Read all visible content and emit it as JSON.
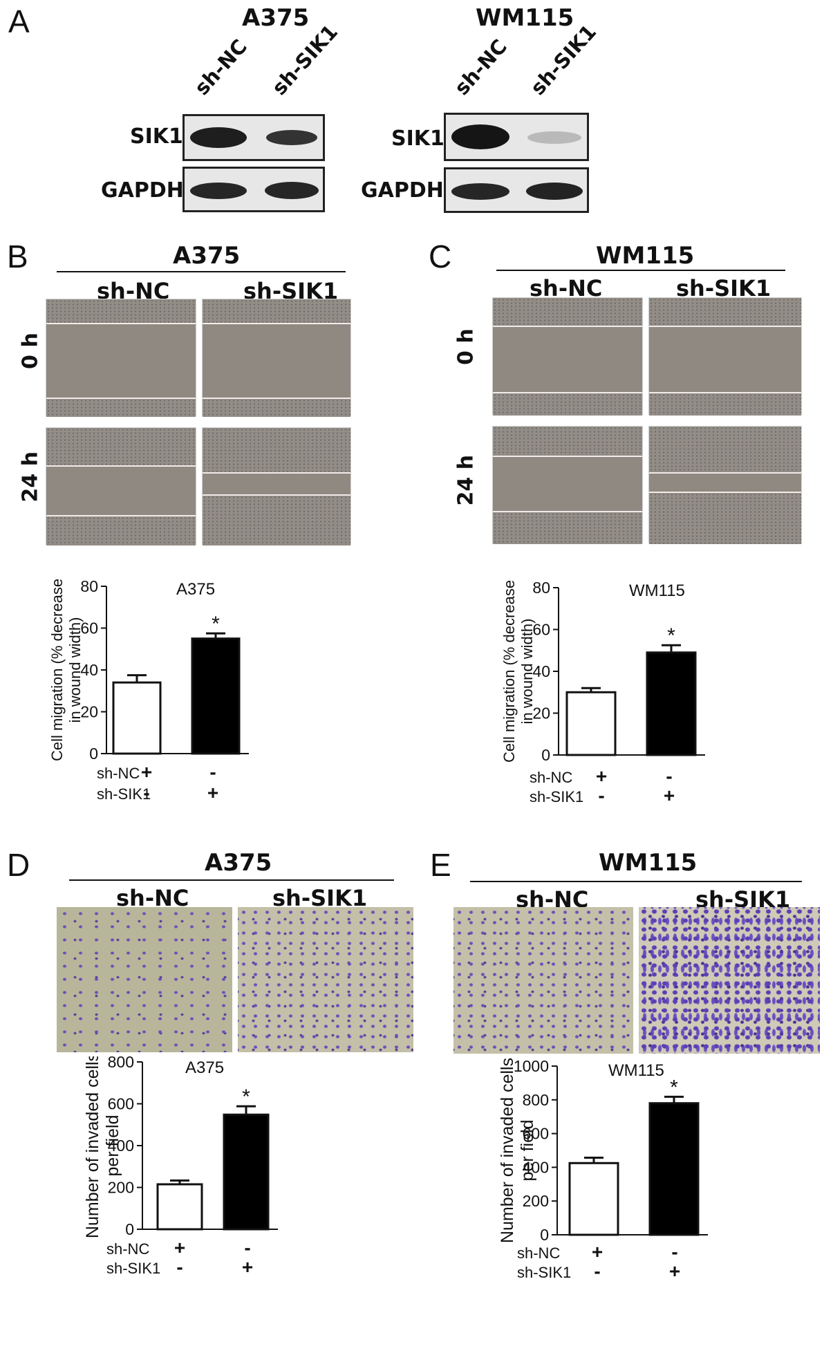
{
  "panels": {
    "A": {
      "label": "A",
      "blots": [
        {
          "cell_line": "A375",
          "lanes": [
            "sh-NC",
            "sh-SIK1"
          ],
          "rows": [
            "SIK1",
            "GAPDH"
          ]
        },
        {
          "cell_line": "WM115",
          "lanes": [
            "sh-NC",
            "sh-SIK1"
          ],
          "rows": [
            "SIK1",
            "GAPDH"
          ]
        }
      ]
    },
    "B": {
      "label": "B",
      "cell_line": "A375",
      "groups": [
        "sh-NC",
        "sh-SIK1"
      ],
      "times": [
        "0 h",
        "24 h"
      ]
    },
    "C": {
      "label": "C",
      "cell_line": "WM115",
      "groups": [
        "sh-NC",
        "sh-SIK1"
      ],
      "times": [
        "0 h",
        "24 h"
      ]
    },
    "D": {
      "label": "D",
      "cell_line": "A375",
      "groups": [
        "sh-NC",
        "sh-SIK1"
      ]
    },
    "E": {
      "label": "E",
      "cell_line": "WM115",
      "groups": [
        "sh-NC",
        "sh-SIK1"
      ]
    }
  },
  "chart_data": [
    {
      "panel": "B",
      "type": "bar",
      "title": "A375",
      "ylabel": "Cell migration (% decrease in wound width)",
      "ylim": [
        0,
        80
      ],
      "yticks": [
        0,
        20,
        40,
        60,
        80
      ],
      "categories": [
        "sh-NC +/sh-SIK1 -",
        "sh-NC -/sh-SIK1 +"
      ],
      "values": [
        34,
        55
      ],
      "errors": [
        3.5,
        2.5
      ],
      "fills": [
        "#ffffff",
        "#000000"
      ],
      "significance": [
        "",
        "*"
      ],
      "condition_rows": [
        {
          "name": "sh-NC",
          "signs": [
            "+",
            "-"
          ]
        },
        {
          "name": "sh-SIK1",
          "signs": [
            "-",
            "+"
          ]
        }
      ]
    },
    {
      "panel": "C",
      "type": "bar",
      "title": "WM115",
      "ylabel": "Cell migration (% decrease in wound width)",
      "ylim": [
        0,
        80
      ],
      "yticks": [
        0,
        20,
        40,
        60,
        80
      ],
      "categories": [
        "sh-NC +/sh-SIK1 -",
        "sh-NC -/sh-SIK1 +"
      ],
      "values": [
        30,
        49
      ],
      "errors": [
        2,
        3.5
      ],
      "fills": [
        "#ffffff",
        "#000000"
      ],
      "significance": [
        "",
        "*"
      ],
      "condition_rows": [
        {
          "name": "sh-NC",
          "signs": [
            "+",
            "-"
          ]
        },
        {
          "name": "sh-SIK1",
          "signs": [
            "-",
            "+"
          ]
        }
      ]
    },
    {
      "panel": "D",
      "type": "bar",
      "title": "A375",
      "ylabel": "Number of invaded cells per field",
      "ylim": [
        0,
        800
      ],
      "yticks": [
        0,
        200,
        400,
        600,
        800
      ],
      "categories": [
        "sh-NC +/sh-SIK1 -",
        "sh-NC -/sh-SIK1 +"
      ],
      "values": [
        215,
        548
      ],
      "errors": [
        18,
        40
      ],
      "fills": [
        "#ffffff",
        "#000000"
      ],
      "significance": [
        "",
        "*"
      ],
      "condition_rows": [
        {
          "name": "sh-NC",
          "signs": [
            "+",
            "-"
          ]
        },
        {
          "name": "sh-SIK1",
          "signs": [
            "-",
            "+"
          ]
        }
      ]
    },
    {
      "panel": "E",
      "type": "bar",
      "title": "WM115",
      "ylabel": "Number of invaded cells per field",
      "ylim": [
        0,
        1000
      ],
      "yticks": [
        0,
        200,
        400,
        600,
        800,
        1000
      ],
      "categories": [
        "sh-NC +/sh-SIK1 -",
        "sh-NC -/sh-SIK1 +"
      ],
      "values": [
        425,
        780
      ],
      "errors": [
        32,
        38
      ],
      "fills": [
        "#ffffff",
        "#000000"
      ],
      "significance": [
        "",
        "*"
      ],
      "condition_rows": [
        {
          "name": "sh-NC",
          "signs": [
            "+",
            "-"
          ]
        },
        {
          "name": "sh-SIK1",
          "signs": [
            "-",
            "+"
          ]
        }
      ]
    }
  ]
}
